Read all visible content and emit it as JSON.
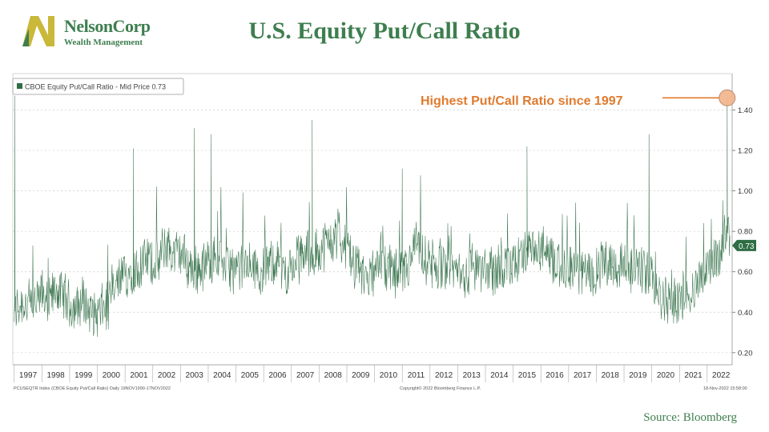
{
  "header": {
    "logo_name": "NelsonCorp",
    "logo_sub": "Wealth Management",
    "title": "U.S. Equity Put/Call Ratio"
  },
  "footer": {
    "source": "Source: Bloomberg"
  },
  "colors": {
    "brand_green": "#3e7e4f",
    "logo_gold": "#c9b83a",
    "series_green": "#2f6e45",
    "annotation_orange": "#e07b2e",
    "marker_fill": "#f2b48a"
  },
  "chart_data": {
    "type": "line",
    "legend_label": "CBOE Equity Put/Call Ratio - Mid Price 0.73",
    "legend_position": "top-left",
    "current_value_badge": "0.73",
    "annotation": "Highest Put/Call Ratio since 1997",
    "x_tick_labels": [
      "1997",
      "1998",
      "1999",
      "2000",
      "2001",
      "2002",
      "2003",
      "2004",
      "2005",
      "2006",
      "2007",
      "2008",
      "2009",
      "2010",
      "2011",
      "2012",
      "2013",
      "2014",
      "2015",
      "2016",
      "2017",
      "2018",
      "2019",
      "2020",
      "2021",
      "2022"
    ],
    "y_tick_labels": [
      "0.20",
      "0.40",
      "0.60",
      "0.80",
      "1.00",
      "1.20",
      "1.40"
    ],
    "ylim": [
      0.14,
      1.58
    ],
    "xlim": [
      1996.95,
      2022.9
    ],
    "grid": true,
    "footer_left": "PCUSEQTR Index (CBOE Equity Put/Call Ratio)  Daily 19NOV1990-17NOV2022",
    "footer_center": "Copyright© 2022 Bloomberg Finance L.P.",
    "footer_right": "18-Nov-2022 15:58:00",
    "series": [
      {
        "name": "CBOE Equity Put/Call Ratio",
        "x": [
          1997.0,
          1997.25,
          1997.5,
          1997.75,
          1998.0,
          1998.25,
          1998.5,
          1998.75,
          1999.0,
          1999.25,
          1999.5,
          1999.75,
          2000.0,
          2000.25,
          2000.5,
          2000.75,
          2001.0,
          2001.25,
          2001.5,
          2001.75,
          2002.0,
          2002.25,
          2002.5,
          2002.75,
          2003.0,
          2003.25,
          2003.5,
          2003.75,
          2004.0,
          2004.25,
          2004.5,
          2004.75,
          2005.0,
          2005.25,
          2005.5,
          2005.75,
          2006.0,
          2006.25,
          2006.5,
          2006.75,
          2007.0,
          2007.25,
          2007.5,
          2007.75,
          2008.0,
          2008.25,
          2008.5,
          2008.75,
          2009.0,
          2009.25,
          2009.5,
          2009.75,
          2010.0,
          2010.25,
          2010.5,
          2010.75,
          2011.0,
          2011.25,
          2011.5,
          2011.75,
          2012.0,
          2012.25,
          2012.5,
          2012.75,
          2013.0,
          2013.25,
          2013.5,
          2013.75,
          2014.0,
          2014.25,
          2014.5,
          2014.75,
          2015.0,
          2015.25,
          2015.5,
          2015.75,
          2016.0,
          2016.25,
          2016.5,
          2016.75,
          2017.0,
          2017.25,
          2017.5,
          2017.75,
          2018.0,
          2018.25,
          2018.5,
          2018.75,
          2019.0,
          2019.25,
          2019.5,
          2019.75,
          2020.0,
          2020.25,
          2020.5,
          2020.75,
          2021.0,
          2021.25,
          2021.5,
          2021.75,
          2022.0,
          2022.25,
          2022.5,
          2022.75,
          2022.85
        ],
        "values": [
          0.4,
          0.45,
          0.44,
          0.42,
          0.5,
          0.44,
          0.52,
          0.48,
          0.44,
          0.42,
          0.46,
          0.4,
          0.39,
          0.42,
          0.47,
          0.55,
          0.58,
          0.62,
          0.6,
          0.66,
          0.64,
          0.66,
          0.74,
          0.68,
          0.7,
          0.64,
          0.6,
          0.62,
          0.64,
          0.68,
          0.66,
          0.62,
          0.6,
          0.62,
          0.64,
          0.6,
          0.62,
          0.64,
          0.66,
          0.6,
          0.62,
          0.66,
          0.7,
          0.68,
          0.72,
          0.74,
          0.76,
          0.78,
          0.7,
          0.64,
          0.58,
          0.6,
          0.58,
          0.62,
          0.6,
          0.58,
          0.6,
          0.62,
          0.74,
          0.66,
          0.64,
          0.62,
          0.66,
          0.6,
          0.62,
          0.58,
          0.6,
          0.62,
          0.6,
          0.62,
          0.6,
          0.62,
          0.64,
          0.66,
          0.7,
          0.68,
          0.72,
          0.66,
          0.64,
          0.6,
          0.62,
          0.6,
          0.6,
          0.58,
          0.62,
          0.64,
          0.66,
          0.62,
          0.64,
          0.62,
          0.64,
          0.6,
          0.58,
          0.5,
          0.46,
          0.48,
          0.46,
          0.48,
          0.52,
          0.56,
          0.62,
          0.66,
          0.7,
          0.82,
          0.73
        ]
      }
    ],
    "notable_spikes": [
      {
        "x": 1997.02,
        "y": 1.47
      },
      {
        "x": 2003.5,
        "y": 1.31
      },
      {
        "x": 2004.1,
        "y": 1.28
      },
      {
        "x": 2001.3,
        "y": 1.21
      },
      {
        "x": 2007.75,
        "y": 1.35
      },
      {
        "x": 2011.0,
        "y": 1.11
      },
      {
        "x": 2015.5,
        "y": 1.22
      },
      {
        "x": 2019.9,
        "y": 1.28
      },
      {
        "x": 2022.72,
        "y": 1.46
      }
    ],
    "highlight_point": {
      "x": 2022.72,
      "y": 1.46
    }
  }
}
